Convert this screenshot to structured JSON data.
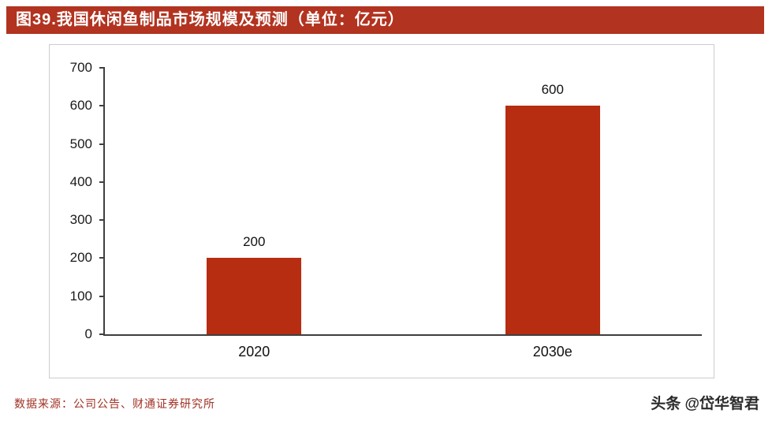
{
  "header": {
    "title": "图39.我国休闲鱼制品市场规模及预测（单位：亿元）"
  },
  "footer": {
    "source": "数据来源：公司公告、财通证券研究所",
    "watermark": "头条 @岱华智君"
  },
  "colors": {
    "title_bg": "#b23320",
    "bar": "#b72d12",
    "axis": "#3f3f3f",
    "source_text": "#a03123"
  },
  "chart_data": {
    "type": "bar",
    "title": "图39.我国休闲鱼制品市场规模及预测（单位：亿元）",
    "categories": [
      "2020",
      "2030e"
    ],
    "values": [
      200,
      600
    ],
    "data_labels": [
      "200",
      "600"
    ],
    "xlabel": "",
    "ylabel": "",
    "ylim": [
      0,
      700
    ],
    "yticks": [
      0,
      100,
      200,
      300,
      400,
      500,
      600,
      700
    ],
    "grid": false,
    "legend": false,
    "bar_color": "#b72d12",
    "unit": "亿元"
  }
}
